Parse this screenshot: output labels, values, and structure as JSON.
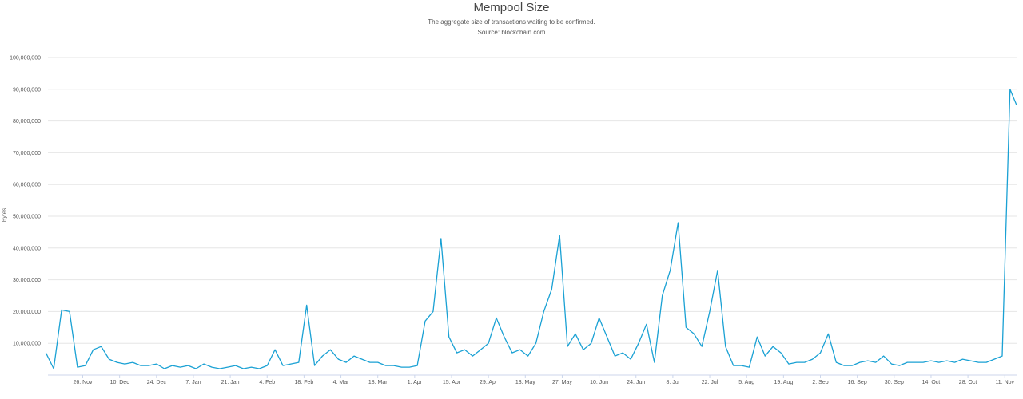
{
  "chart_data": {
    "type": "line",
    "title": "Mempool Size",
    "subtitle": "The aggregate size of transactions waiting to be confirmed.",
    "source": "Source: blockchain.com",
    "ylabel": "Bytes",
    "xlabel": "",
    "ylim": [
      0,
      100000000
    ],
    "yticks": [
      10000000,
      20000000,
      30000000,
      40000000,
      50000000,
      60000000,
      70000000,
      80000000,
      90000000,
      100000000
    ],
    "ytick_labels": [
      "10,000,000",
      "20,000,000",
      "30,000,000",
      "40,000,000",
      "50,000,000",
      "60,000,000",
      "70,000,000",
      "80,000,000",
      "90,000,000",
      "100,000,000"
    ],
    "xtick_labels": [
      "26. Nov",
      "10. Dec",
      "24. Dec",
      "7. Jan",
      "21. Jan",
      "4. Feb",
      "18. Feb",
      "4. Mar",
      "18. Mar",
      "1. Apr",
      "15. Apr",
      "29. Apr",
      "13. May",
      "27. May",
      "10. Jun",
      "24. Jun",
      "8. Jul",
      "22. Jul",
      "5. Aug",
      "19. Aug",
      "2. Sep",
      "16. Sep",
      "30. Sep",
      "14. Oct",
      "28. Oct",
      "11. Nov"
    ],
    "x_first": "12. Nov",
    "x_last": "15. Nov",
    "x_step": "3 days",
    "grid": true,
    "legend": "none",
    "series": [
      {
        "color": "#1aa1d4",
        "values": [
          7000000,
          2000000,
          20500000,
          20000000,
          2500000,
          3000000,
          8000000,
          9000000,
          5000000,
          4000000,
          3500000,
          4000000,
          3000000,
          3000000,
          3500000,
          2000000,
          3000000,
          2500000,
          3000000,
          2000000,
          3500000,
          2500000,
          2000000,
          2500000,
          3000000,
          2000000,
          2500000,
          2000000,
          3000000,
          8000000,
          3000000,
          3500000,
          4000000,
          22000000,
          3000000,
          6000000,
          8000000,
          5000000,
          4000000,
          6000000,
          5000000,
          4000000,
          4000000,
          3000000,
          3000000,
          2500000,
          2500000,
          3000000,
          17000000,
          20000000,
          43000000,
          12000000,
          7000000,
          8000000,
          6000000,
          8000000,
          10000000,
          18000000,
          12000000,
          7000000,
          8000000,
          6000000,
          10000000,
          20000000,
          27000000,
          44000000,
          9000000,
          13000000,
          8000000,
          10000000,
          18000000,
          12000000,
          6000000,
          7000000,
          5000000,
          10000000,
          16000000,
          4000000,
          25000000,
          33000000,
          48000000,
          15000000,
          13000000,
          9000000,
          20000000,
          33000000,
          9000000,
          3000000,
          3000000,
          2500000,
          12000000,
          6000000,
          9000000,
          7000000,
          3500000,
          4000000,
          4000000,
          5000000,
          7000000,
          13000000,
          4000000,
          3000000,
          3000000,
          4000000,
          4500000,
          4000000,
          6000000,
          3500000,
          3000000,
          4000000,
          4000000,
          4000000,
          4500000,
          4000000,
          4500000,
          4000000,
          5000000,
          4500000,
          4000000,
          4000000,
          5000000,
          6000000,
          90000000,
          85000000
        ]
      }
    ]
  }
}
